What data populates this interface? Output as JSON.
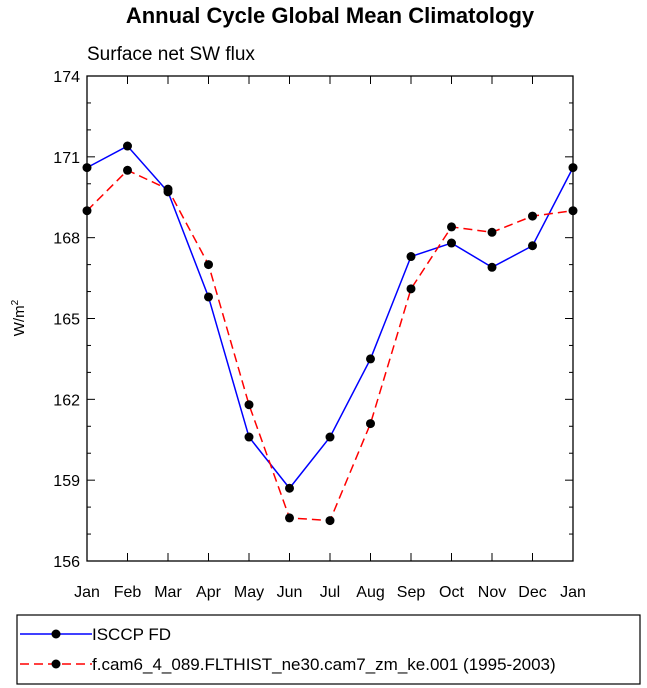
{
  "chart_data": {
    "type": "line",
    "title": "Annual Cycle Global Mean Climatology",
    "subtitle": "Surface net SW flux",
    "ylabel": "W/m",
    "ylabel_sup": "2",
    "xlabel": "",
    "categories": [
      "Jan",
      "Feb",
      "Mar",
      "Apr",
      "May",
      "Jun",
      "Jul",
      "Aug",
      "Sep",
      "Oct",
      "Nov",
      "Dec",
      "Jan"
    ],
    "ylim": [
      156,
      174
    ],
    "yticks": [
      156,
      159,
      162,
      165,
      168,
      171,
      174
    ],
    "series": [
      {
        "name": "ISCCP FD",
        "color": "#0000ff",
        "dash": "solid",
        "values": [
          170.6,
          171.4,
          169.7,
          165.8,
          160.6,
          158.7,
          160.6,
          163.5,
          167.3,
          167.8,
          166.9,
          167.7,
          170.6
        ]
      },
      {
        "name": "f.cam6_4_089.FLTHIST_ne30.cam7_zm_ke.001 (1995-2003)",
        "color": "#ff0000",
        "dash": "dashed",
        "values": [
          169.0,
          170.5,
          169.8,
          167.0,
          161.8,
          157.6,
          157.5,
          161.1,
          166.1,
          168.4,
          168.2,
          168.8,
          169.0
        ]
      }
    ],
    "legend_position": "bottom"
  }
}
